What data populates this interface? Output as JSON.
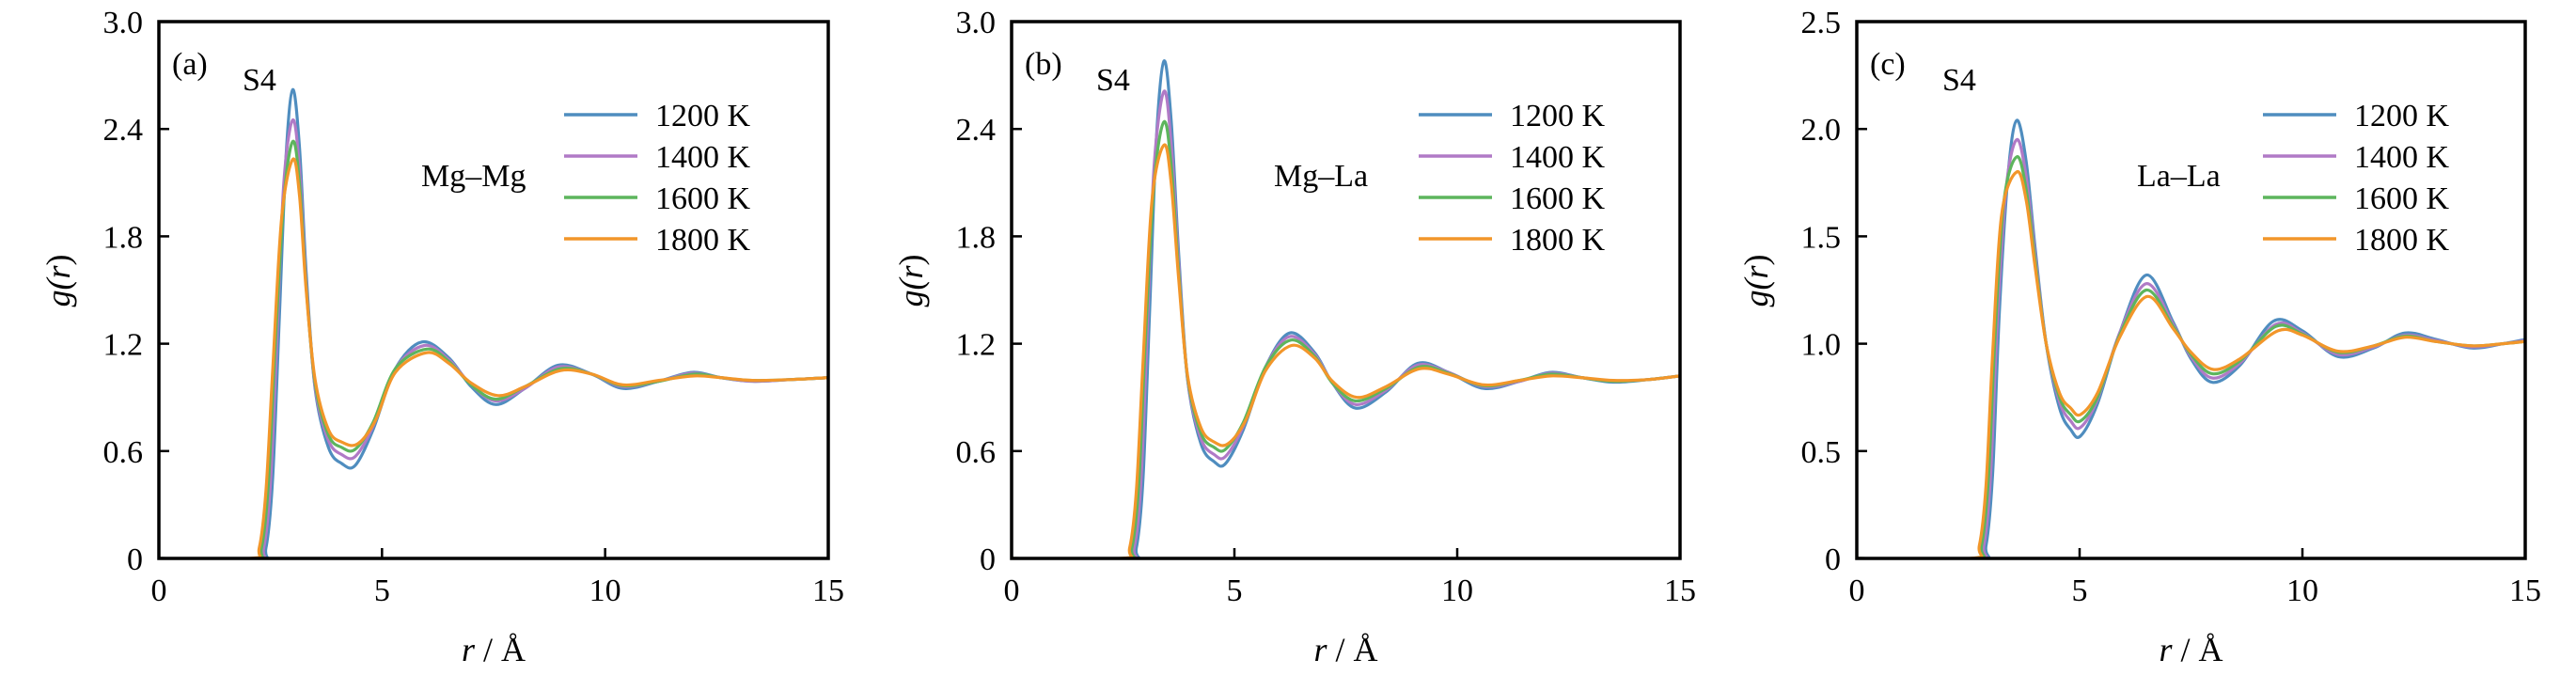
{
  "figure": {
    "series_colors": {
      "1200 K": "#4f8dbf",
      "1400 K": "#b07ac6",
      "1600 K": "#5db55d",
      "1800 K": "#f2962a"
    }
  },
  "chart_data": [
    {
      "type": "line",
      "panel_label": "(a)",
      "annotation": "S4",
      "pair_label": "Mg–Mg",
      "xlabel": "r / Å",
      "ylabel": "g(r)",
      "xlim": [
        0,
        15
      ],
      "ylim": [
        0,
        3.0
      ],
      "xticks": [
        0,
        5,
        10,
        15
      ],
      "xtick_labels": [
        "0",
        "5",
        "10",
        "15"
      ],
      "yticks": [
        0,
        0.6,
        1.2,
        1.8,
        2.4,
        3.0
      ],
      "ytick_labels": [
        "0",
        "0.6",
        "1.2",
        "1.8",
        "2.4",
        "3.0"
      ],
      "legend": [
        "1200 K",
        "1400 K",
        "1600 K",
        "1800 K"
      ],
      "legend_position": "top-right",
      "grid": false,
      "series": [
        {
          "name": "1200 K",
          "x": [
            0,
            2.2,
            2.4,
            2.55,
            2.7,
            2.85,
            3.0,
            3.15,
            3.3,
            3.5,
            3.8,
            4.1,
            4.4,
            4.8,
            5.3,
            5.9,
            6.5,
            7.0,
            7.55,
            8.2,
            8.95,
            9.7,
            10.4,
            11.2,
            11.95,
            12.6,
            13.3,
            14.2,
            15.0
          ],
          "y": [
            0,
            0,
            0.06,
            0.45,
            1.35,
            2.25,
            2.62,
            2.3,
            1.6,
            0.95,
            0.62,
            0.53,
            0.52,
            0.72,
            1.06,
            1.21,
            1.12,
            0.96,
            0.86,
            0.95,
            1.08,
            1.03,
            0.95,
            0.99,
            1.04,
            1.01,
            0.99,
            1.0,
            1.01
          ]
        },
        {
          "name": "1400 K",
          "x": [
            0,
            2.15,
            2.35,
            2.5,
            2.65,
            2.8,
            3.0,
            3.15,
            3.3,
            3.5,
            3.8,
            4.1,
            4.4,
            4.8,
            5.3,
            5.95,
            6.5,
            7.0,
            7.55,
            8.2,
            8.95,
            9.7,
            10.4,
            11.2,
            11.95,
            12.6,
            13.3,
            14.2,
            15.0
          ],
          "y": [
            0,
            0,
            0.06,
            0.42,
            1.25,
            2.1,
            2.45,
            2.18,
            1.55,
            0.96,
            0.66,
            0.58,
            0.57,
            0.74,
            1.06,
            1.19,
            1.11,
            0.97,
            0.88,
            0.95,
            1.07,
            1.03,
            0.96,
            0.99,
            1.035,
            1.01,
            0.99,
            1.0,
            1.01
          ]
        },
        {
          "name": "1600 K",
          "x": [
            0,
            2.1,
            2.3,
            2.45,
            2.6,
            2.8,
            3.0,
            3.15,
            3.3,
            3.5,
            3.8,
            4.1,
            4.4,
            4.8,
            5.3,
            6.0,
            6.5,
            7.0,
            7.55,
            8.2,
            9.0,
            9.7,
            10.4,
            11.2,
            12.0,
            12.6,
            13.3,
            14.2,
            15.0
          ],
          "y": [
            0,
            0,
            0.06,
            0.4,
            1.15,
            2.0,
            2.33,
            2.1,
            1.52,
            0.98,
            0.69,
            0.62,
            0.61,
            0.76,
            1.06,
            1.17,
            1.1,
            0.97,
            0.89,
            0.96,
            1.06,
            1.03,
            0.965,
            0.99,
            1.03,
            1.01,
            0.995,
            1.0,
            1.01
          ]
        },
        {
          "name": "1800 K",
          "x": [
            0,
            2.05,
            2.25,
            2.4,
            2.55,
            2.75,
            3.0,
            3.15,
            3.3,
            3.5,
            3.8,
            4.1,
            4.45,
            4.85,
            5.3,
            6.0,
            6.5,
            7.0,
            7.6,
            8.2,
            9.0,
            9.7,
            10.4,
            11.2,
            12.0,
            12.6,
            13.3,
            14.2,
            15.0
          ],
          "y": [
            0,
            0,
            0.06,
            0.38,
            1.05,
            1.9,
            2.23,
            2.03,
            1.5,
            1.0,
            0.72,
            0.65,
            0.64,
            0.77,
            1.04,
            1.15,
            1.09,
            0.98,
            0.91,
            0.96,
            1.05,
            1.03,
            0.97,
            0.995,
            1.02,
            1.01,
            0.995,
            1.0,
            1.01
          ]
        }
      ]
    },
    {
      "type": "line",
      "panel_label": "(b)",
      "annotation": "S4",
      "pair_label": "Mg–La",
      "xlabel": "r / Å",
      "ylabel": "g(r)",
      "xlim": [
        0,
        15
      ],
      "ylim": [
        0,
        3.0
      ],
      "xticks": [
        0,
        5,
        10,
        15
      ],
      "xtick_labels": [
        "0",
        "5",
        "10",
        "15"
      ],
      "yticks": [
        0,
        0.6,
        1.2,
        1.8,
        2.4,
        3.0
      ],
      "ytick_labels": [
        "0",
        "0.6",
        "1.2",
        "1.8",
        "2.4",
        "3.0"
      ],
      "legend": [
        "1200 K",
        "1400 K",
        "1600 K",
        "1800 K"
      ],
      "legend_position": "top-right",
      "grid": false,
      "series": [
        {
          "name": "1200 K",
          "x": [
            0,
            2.6,
            2.8,
            2.95,
            3.1,
            3.25,
            3.42,
            3.58,
            3.75,
            3.95,
            4.25,
            4.55,
            4.8,
            5.2,
            5.7,
            6.24,
            6.8,
            7.2,
            7.72,
            8.4,
            9.11,
            9.8,
            10.6,
            11.4,
            12.1,
            12.8,
            13.5,
            14.3,
            15.0
          ],
          "y": [
            0,
            0,
            0.06,
            0.45,
            1.4,
            2.35,
            2.78,
            2.45,
            1.7,
            1.0,
            0.64,
            0.54,
            0.53,
            0.72,
            1.07,
            1.26,
            1.15,
            0.98,
            0.84,
            0.93,
            1.09,
            1.04,
            0.95,
            0.99,
            1.04,
            1.01,
            0.985,
            1.0,
            1.02
          ]
        },
        {
          "name": "1400 K",
          "x": [
            0,
            2.55,
            2.75,
            2.9,
            3.05,
            3.2,
            3.42,
            3.58,
            3.75,
            3.95,
            4.25,
            4.55,
            4.8,
            5.2,
            5.7,
            6.24,
            6.8,
            7.2,
            7.72,
            8.4,
            9.11,
            9.8,
            10.6,
            11.4,
            12.1,
            12.8,
            13.5,
            14.3,
            15.0
          ],
          "y": [
            0,
            0,
            0.06,
            0.42,
            1.3,
            2.2,
            2.61,
            2.32,
            1.65,
            1.0,
            0.67,
            0.58,
            0.57,
            0.74,
            1.07,
            1.24,
            1.14,
            0.98,
            0.86,
            0.94,
            1.08,
            1.04,
            0.96,
            0.99,
            1.035,
            1.01,
            0.99,
            1.0,
            1.02
          ]
        },
        {
          "name": "1600 K",
          "x": [
            0,
            2.5,
            2.7,
            2.85,
            3.0,
            3.2,
            3.42,
            3.58,
            3.75,
            3.95,
            4.25,
            4.55,
            4.8,
            5.2,
            5.7,
            6.26,
            6.8,
            7.2,
            7.72,
            8.4,
            9.15,
            9.8,
            10.6,
            11.4,
            12.1,
            12.8,
            13.5,
            14.3,
            15.0
          ],
          "y": [
            0,
            0,
            0.06,
            0.4,
            1.2,
            2.1,
            2.44,
            2.2,
            1.6,
            1.01,
            0.7,
            0.62,
            0.61,
            0.76,
            1.07,
            1.22,
            1.13,
            0.98,
            0.88,
            0.95,
            1.07,
            1.035,
            0.965,
            0.995,
            1.03,
            1.01,
            0.99,
            1.0,
            1.02
          ]
        },
        {
          "name": "1800 K",
          "x": [
            0,
            2.45,
            2.65,
            2.8,
            2.95,
            3.15,
            3.42,
            3.58,
            3.75,
            3.95,
            4.25,
            4.55,
            4.85,
            5.25,
            5.7,
            6.28,
            6.8,
            7.2,
            7.75,
            8.4,
            9.15,
            9.8,
            10.6,
            11.4,
            12.1,
            12.8,
            13.5,
            14.3,
            15.0
          ],
          "y": [
            0,
            0,
            0.06,
            0.38,
            1.1,
            2.0,
            2.31,
            2.1,
            1.56,
            1.02,
            0.73,
            0.65,
            0.64,
            0.77,
            1.05,
            1.19,
            1.12,
            0.99,
            0.9,
            0.96,
            1.06,
            1.03,
            0.97,
            0.995,
            1.02,
            1.01,
            0.995,
            1.0,
            1.02
          ]
        }
      ]
    },
    {
      "type": "line",
      "panel_label": "(c)",
      "annotation": "S4",
      "pair_label": "La–La",
      "xlabel": "r / Å",
      "ylabel": "g(r)",
      "xlim": [
        0,
        15
      ],
      "ylim": [
        0,
        2.5
      ],
      "xticks": [
        0,
        5,
        10,
        15
      ],
      "xtick_labels": [
        "0",
        "5",
        "10",
        "15"
      ],
      "yticks": [
        0,
        0.5,
        1.0,
        1.5,
        2.0,
        2.5
      ],
      "ytick_labels": [
        "0",
        "0.5",
        "1.0",
        "1.5",
        "2.0",
        "2.5"
      ],
      "legend": [
        "1200 K",
        "1400 K",
        "1600 K",
        "1800 K"
      ],
      "legend_position": "top-right",
      "grid": false,
      "series": [
        {
          "name": "1200 K",
          "x": [
            0,
            2.7,
            2.9,
            3.05,
            3.2,
            3.4,
            3.59,
            3.8,
            4.0,
            4.25,
            4.55,
            4.8,
            5.02,
            5.4,
            5.9,
            6.5,
            7.1,
            7.5,
            7.98,
            8.6,
            9.35,
            10.0,
            10.8,
            11.6,
            12.3,
            13.0,
            13.8,
            14.5,
            15.0
          ],
          "y": [
            0,
            0,
            0.06,
            0.4,
            1.15,
            1.8,
            2.04,
            1.85,
            1.45,
            1.0,
            0.7,
            0.6,
            0.57,
            0.72,
            1.05,
            1.32,
            1.1,
            0.93,
            0.82,
            0.9,
            1.105,
            1.06,
            0.94,
            0.98,
            1.05,
            1.02,
            0.98,
            1.0,
            1.02
          ]
        },
        {
          "name": "1400 K",
          "x": [
            0,
            2.65,
            2.85,
            3.0,
            3.15,
            3.35,
            3.59,
            3.8,
            4.0,
            4.25,
            4.55,
            4.8,
            5.02,
            5.4,
            5.9,
            6.5,
            7.1,
            7.5,
            7.98,
            8.6,
            9.4,
            10.0,
            10.8,
            11.6,
            12.3,
            13.0,
            13.8,
            14.5,
            15.0
          ],
          "y": [
            0,
            0,
            0.06,
            0.38,
            1.08,
            1.72,
            1.95,
            1.78,
            1.42,
            1.0,
            0.73,
            0.64,
            0.61,
            0.74,
            1.05,
            1.28,
            1.09,
            0.94,
            0.84,
            0.91,
            1.09,
            1.05,
            0.95,
            0.985,
            1.04,
            1.015,
            0.985,
            1.0,
            1.015
          ]
        },
        {
          "name": "1600 K",
          "x": [
            0,
            2.6,
            2.8,
            2.95,
            3.1,
            3.3,
            3.59,
            3.8,
            4.0,
            4.25,
            4.55,
            4.8,
            5.02,
            5.4,
            5.9,
            6.5,
            7.1,
            7.5,
            7.98,
            8.6,
            9.4,
            10.0,
            10.8,
            11.6,
            12.3,
            13.0,
            13.8,
            14.5,
            15.0
          ],
          "y": [
            0,
            0,
            0.06,
            0.36,
            1.02,
            1.66,
            1.87,
            1.72,
            1.39,
            1.0,
            0.75,
            0.67,
            0.64,
            0.75,
            1.04,
            1.25,
            1.08,
            0.95,
            0.86,
            0.92,
            1.08,
            1.045,
            0.96,
            0.99,
            1.035,
            1.01,
            0.99,
            1.0,
            1.01
          ]
        },
        {
          "name": "1800 K",
          "x": [
            0,
            2.55,
            2.75,
            2.9,
            3.05,
            3.25,
            3.59,
            3.8,
            4.0,
            4.25,
            4.55,
            4.8,
            5.02,
            5.4,
            5.9,
            6.52,
            7.1,
            7.5,
            8.0,
            8.6,
            9.45,
            10.0,
            10.8,
            11.6,
            12.3,
            13.0,
            13.8,
            14.5,
            15.0
          ],
          "y": [
            0,
            0,
            0.06,
            0.34,
            0.96,
            1.6,
            1.8,
            1.67,
            1.36,
            1.0,
            0.77,
            0.7,
            0.67,
            0.77,
            1.03,
            1.22,
            1.07,
            0.96,
            0.88,
            0.93,
            1.06,
            1.04,
            0.965,
            0.99,
            1.03,
            1.01,
            0.99,
            1.0,
            1.01
          ]
        }
      ]
    }
  ]
}
